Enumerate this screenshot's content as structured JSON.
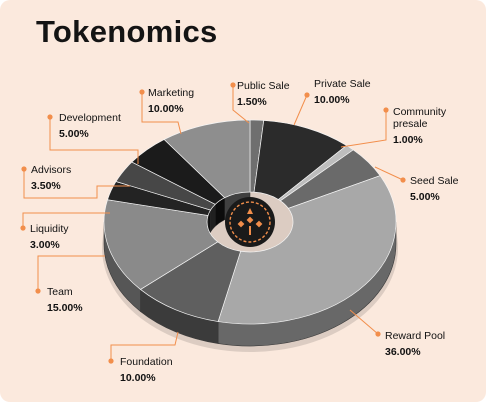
{
  "page": {
    "title": "Tokenomics"
  },
  "colors": {
    "background": "#fbe9dd",
    "accent": "#f28e4b",
    "logo_ring": "#f28e4b",
    "logo_bg": "#1a1a1a"
  },
  "chart_data": {
    "type": "pie",
    "title": "Tokenomics",
    "style": "3d-donut",
    "segments": [
      {
        "label": "Public Sale",
        "value_text": "1.50%",
        "value": 1.5,
        "color": "#6f6f6f"
      },
      {
        "label": "Private Sale",
        "value_text": "10.00%",
        "value": 10.0,
        "color": "#2b2b2b"
      },
      {
        "label": "Community presale",
        "label_lines": [
          "Community",
          "presale"
        ],
        "value_text": "1.00%",
        "value": 1.0,
        "color": "#bdbdbd"
      },
      {
        "label": "Seed Sale",
        "value_text": "5.00%",
        "value": 5.0,
        "color": "#6a6a6a"
      },
      {
        "label": "Reward Pool",
        "value_text": "36.00%",
        "value": 36.0,
        "color": "#a8a8a8"
      },
      {
        "label": "Foundation",
        "value_text": "10.00%",
        "value": 10.0,
        "color": "#5f5f5f"
      },
      {
        "label": "Team",
        "value_text": "15.00%",
        "value": 15.0,
        "color": "#8a8a8a"
      },
      {
        "label": "Liquidity",
        "value_text": "3.00%",
        "value": 3.0,
        "color": "#232323"
      },
      {
        "label": "Advisors",
        "value_text": "3.50%",
        "value": 3.5,
        "color": "#474747"
      },
      {
        "label": "Development",
        "value_text": "5.00%",
        "value": 5.0,
        "color": "#1b1b1b"
      },
      {
        "label": "Marketing",
        "value_text": "10.00%",
        "value": 10.0,
        "color": "#8e8e8e"
      }
    ]
  }
}
